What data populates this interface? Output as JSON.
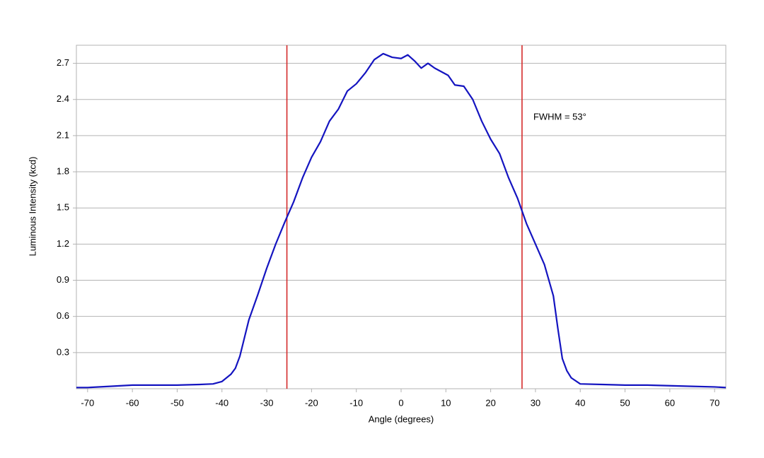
{
  "chart_data": {
    "type": "line",
    "x_label": "Angle (degrees)",
    "y_label": "Luminous Intensity (kcd)",
    "annotation": "FWHM = 53°",
    "xlim": [
      -72.5,
      72.5
    ],
    "ylim": [
      0,
      2.85
    ],
    "xticks": [
      -70,
      -60,
      -50,
      -40,
      -30,
      -20,
      -10,
      0,
      10,
      20,
      30,
      40,
      50,
      60,
      70
    ],
    "yticks": [
      0.3,
      0.6,
      0.9,
      1.2,
      1.5,
      1.8,
      2.1,
      2.4,
      2.7
    ],
    "grid": true,
    "vlines": [
      -25.5,
      27
    ],
    "vline_color": "#d42a2a",
    "x": [
      -72.5,
      -70,
      -65,
      -60,
      -55,
      -50,
      -45,
      -42,
      -40,
      -38,
      -37,
      -36,
      -35,
      -34,
      -32,
      -30,
      -28,
      -26,
      -24,
      -22,
      -20,
      -18,
      -16,
      -14,
      -12,
      -10,
      -8,
      -6,
      -4,
      -2,
      0,
      1.5,
      3,
      4.5,
      6,
      7.5,
      9,
      10.5,
      12,
      14,
      16,
      18,
      20,
      22,
      24,
      26,
      28,
      30,
      32,
      34,
      35,
      36,
      37,
      38,
      40,
      45,
      50,
      55,
      60,
      65,
      70,
      72.5
    ],
    "series": [
      {
        "color": "#1414c0",
        "values": [
          0.01,
          0.01,
          0.02,
          0.03,
          0.03,
          0.03,
          0.035,
          0.04,
          0.06,
          0.12,
          0.17,
          0.27,
          0.42,
          0.57,
          0.78,
          1.0,
          1.2,
          1.38,
          1.55,
          1.75,
          1.92,
          2.05,
          2.22,
          2.32,
          2.47,
          2.53,
          2.62,
          2.73,
          2.78,
          2.75,
          2.74,
          2.77,
          2.72,
          2.66,
          2.7,
          2.66,
          2.63,
          2.6,
          2.52,
          2.51,
          2.4,
          2.22,
          2.07,
          1.95,
          1.75,
          1.58,
          1.37,
          1.2,
          1.03,
          0.77,
          0.5,
          0.25,
          0.15,
          0.09,
          0.04,
          0.035,
          0.03,
          0.03,
          0.025,
          0.02,
          0.015,
          0.01
        ]
      }
    ]
  }
}
